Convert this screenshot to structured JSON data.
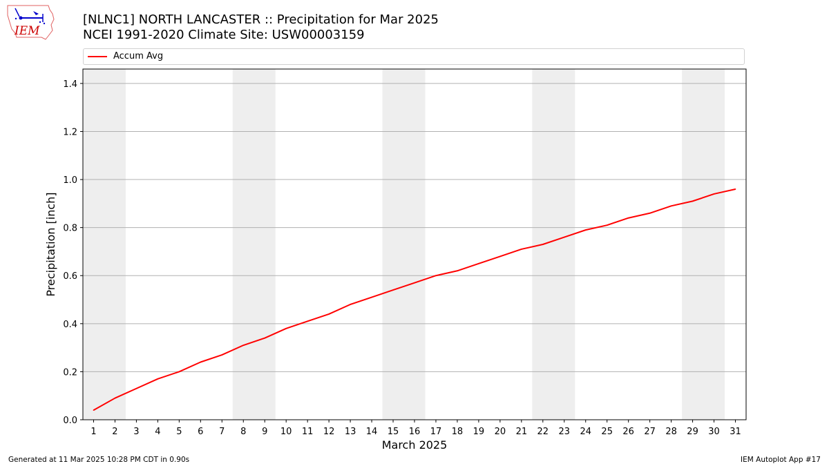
{
  "header": {
    "logo_text": "IEM",
    "title_line1": "[NLNC1] NORTH LANCASTER :: Precipitation for Mar 2025",
    "title_line2": "NCEI 1991-2020 Climate Site: USW00003159"
  },
  "legend": {
    "label": "Accum Avg"
  },
  "footer": {
    "left": "Generated at 11 Mar 2025 10:28 PM CDT in 0.90s",
    "right": "IEM Autoplot App #17"
  },
  "chart_data": {
    "type": "line",
    "xlabel": "March 2025",
    "ylabel": "Precipitation [inch]",
    "ylim": [
      0,
      1.46
    ],
    "xlim": [
      0.5,
      31.5
    ],
    "yticks": [
      0.0,
      0.2,
      0.4,
      0.6,
      0.8,
      1.0,
      1.2,
      1.4
    ],
    "ytick_labels": [
      "0.0",
      "0.2",
      "0.4",
      "0.6",
      "0.8",
      "1.0",
      "1.2",
      "1.4"
    ],
    "x": [
      1,
      2,
      3,
      4,
      5,
      6,
      7,
      8,
      9,
      10,
      11,
      12,
      13,
      14,
      15,
      16,
      17,
      18,
      19,
      20,
      21,
      22,
      23,
      24,
      25,
      26,
      27,
      28,
      29,
      30,
      31
    ],
    "grid": "horizontal",
    "weekend_bands": [
      [
        0.5,
        2.5
      ],
      [
        7.5,
        9.5
      ],
      [
        14.5,
        16.5
      ],
      [
        21.5,
        23.5
      ],
      [
        28.5,
        30.5
      ]
    ],
    "series": [
      {
        "name": "Accum Avg",
        "color": "#ff0000",
        "values": [
          0.04,
          0.09,
          0.13,
          0.17,
          0.2,
          0.24,
          0.27,
          0.31,
          0.34,
          0.38,
          0.41,
          0.44,
          0.48,
          0.51,
          0.54,
          0.57,
          0.6,
          0.62,
          0.65,
          0.68,
          0.71,
          0.73,
          0.76,
          0.79,
          0.81,
          0.84,
          0.86,
          0.89,
          0.91,
          0.94,
          0.96
        ]
      }
    ]
  }
}
